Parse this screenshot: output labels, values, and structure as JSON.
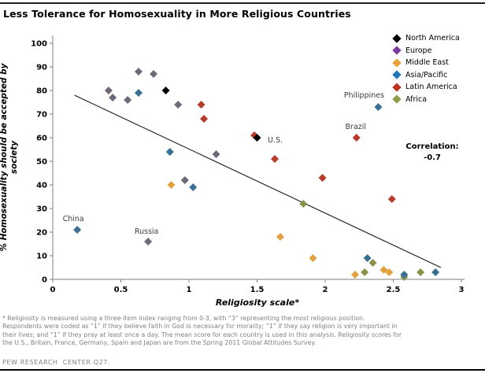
{
  "title": "Less Tolerance for Homosexuality in More Religious Countries",
  "correlation_note": {
    "label": "Correlation:",
    "value": "-0.7"
  },
  "chart_data": {
    "type": "scatter",
    "title": "Less Tolerance for Homosexuality in More Religious Countries",
    "xlabel": "Religiosity scale*",
    "ylabel_lines": [
      "% Homosexuality should be accepted by",
      "society"
    ],
    "xlim": [
      0,
      3
    ],
    "ylim": [
      0,
      100
    ],
    "xticks": [
      0,
      0.5,
      1,
      1.5,
      2,
      2.5,
      3
    ],
    "yticks": [
      0,
      10,
      20,
      30,
      40,
      50,
      60,
      70,
      80,
      90,
      100
    ],
    "grid": false,
    "legend_position": "upper right",
    "trendline": {
      "x1": 0.16,
      "y1": 78,
      "x2": 2.85,
      "y2": 5
    },
    "series": [
      {
        "name": "North America",
        "legend_color": "#000000",
        "point_color": "#000000",
        "z": 6,
        "points": [
          [
            0.83,
            80
          ],
          {
            "x": 1.5,
            "y": 60,
            "label": "U.S.",
            "dx": 23,
            "dy": 3
          }
        ]
      },
      {
        "name": "Europe",
        "legend_color": "#7a3b9b",
        "point_color": "#6e6878",
        "z": 1,
        "points": [
          [
            0.41,
            80
          ],
          [
            0.44,
            77
          ],
          [
            0.55,
            76
          ],
          [
            0.63,
            88
          ],
          [
            0.74,
            87
          ],
          [
            0.92,
            74
          ],
          [
            0.97,
            42
          ],
          [
            1.2,
            53
          ],
          {
            "x": 0.7,
            "y": 16,
            "label": "Russia",
            "dx": -2,
            "dy": -13
          }
        ]
      },
      {
        "name": "Middle East",
        "legend_color": "#e8a33b",
        "point_color": "#e2a13d",
        "z": 2,
        "points": [
          [
            0.87,
            40
          ],
          [
            1.67,
            18
          ],
          [
            1.91,
            9
          ],
          [
            2.22,
            2
          ],
          [
            2.43,
            4
          ],
          [
            2.47,
            3
          ]
        ]
      },
      {
        "name": "Asia/Pacific",
        "legend_color": "#1f74bb",
        "point_color": "#3b7095",
        "z": 4,
        "points": [
          {
            "x": 0.18,
            "y": 21,
            "label": "China",
            "dx": -5,
            "dy": -14
          },
          [
            0.63,
            79
          ],
          [
            0.86,
            54
          ],
          [
            1.03,
            39
          ],
          [
            2.31,
            9
          ],
          {
            "x": 2.39,
            "y": 73,
            "label": "Philippines",
            "dx": -18,
            "dy": -15
          },
          [
            2.58,
            2
          ],
          [
            2.81,
            3
          ]
        ]
      },
      {
        "name": "Latin America",
        "legend_color": "#bf3222",
        "point_color": "#b83a2b",
        "z": 5,
        "points": [
          [
            1.09,
            74
          ],
          [
            1.11,
            68
          ],
          [
            1.48,
            61
          ],
          [
            1.63,
            51
          ],
          [
            1.98,
            43
          ],
          {
            "x": 2.23,
            "y": 60,
            "label": "Brazil",
            "dx": -1,
            "dy": -14
          },
          [
            2.49,
            34
          ]
        ]
      },
      {
        "name": "Africa",
        "legend_color": "#909a48",
        "point_color": "#8b9148",
        "z": 3,
        "points": [
          [
            1.84,
            32
          ],
          [
            2.29,
            3
          ],
          [
            2.35,
            7
          ],
          [
            2.58,
            1
          ],
          [
            2.7,
            3
          ]
        ]
      }
    ],
    "correlation": "-0.7"
  },
  "footnote_lines": [
    "* Religiosity is measured using a three-item index ranging from 0-3, with “3” representing the most religious position.",
    "Respondents were coded as “1” if they believe faith in God is necessary for morality; “1” if they say religion is very important in",
    "their lives; and “1” if they pray at least once a day. The mean score for each country is used in this analysis. Religiosity scores for",
    "the U.S., Britain, France, Germany, Spain and Japan are from the Spring 2011 Global Attitudes Survey."
  ],
  "footer": "PEW RESEARCH  CENTER Q27."
}
